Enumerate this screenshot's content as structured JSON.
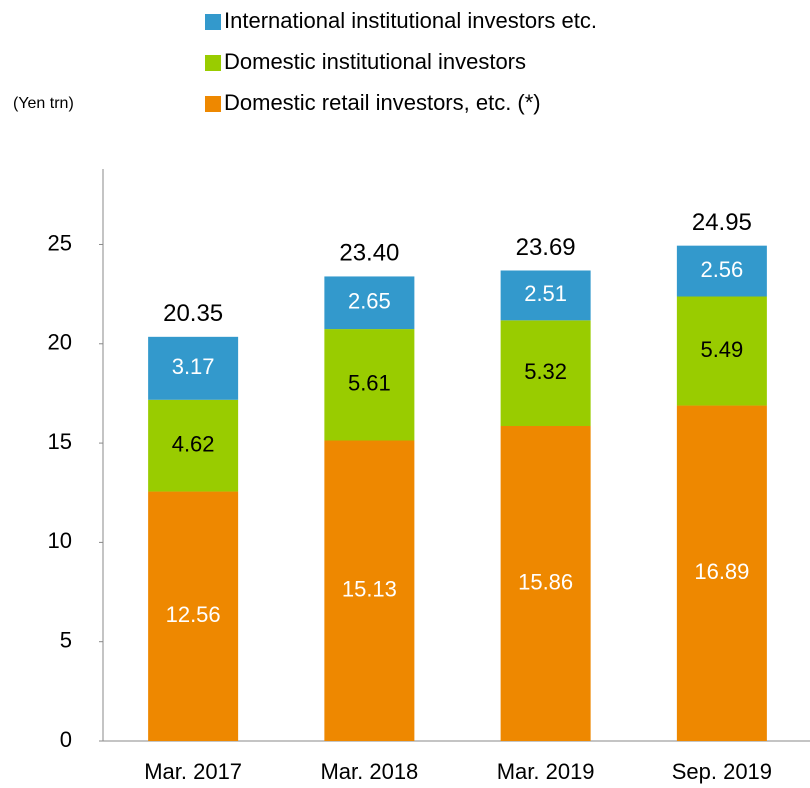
{
  "chart_data": {
    "type": "stacked_bar",
    "y_label": "(Yen trn)",
    "categories": [
      "Mar. 2017",
      "Mar. 2018",
      "Mar. 2019",
      "Sep. 2019"
    ],
    "series": [
      {
        "name": "Domestic retail investors, etc. (*)",
        "color": "#ee8800",
        "values": [
          12.56,
          15.13,
          15.86,
          16.89
        ]
      },
      {
        "name": "Domestic institutional investors",
        "color": "#99cc00",
        "values": [
          4.62,
          5.61,
          5.32,
          5.49
        ]
      },
      {
        "name": "International institutional investors etc.",
        "color": "#3399cc",
        "values": [
          3.17,
          2.65,
          2.51,
          2.56
        ]
      }
    ],
    "totals": [
      20.35,
      23.4,
      23.69,
      24.95
    ],
    "total_labels": [
      "20.35",
      "23.40",
      "23.69",
      "24.95"
    ],
    "ylim": [
      0,
      28.8
    ],
    "yticks": [
      0,
      5,
      10,
      15,
      20,
      25
    ],
    "grid": false
  }
}
